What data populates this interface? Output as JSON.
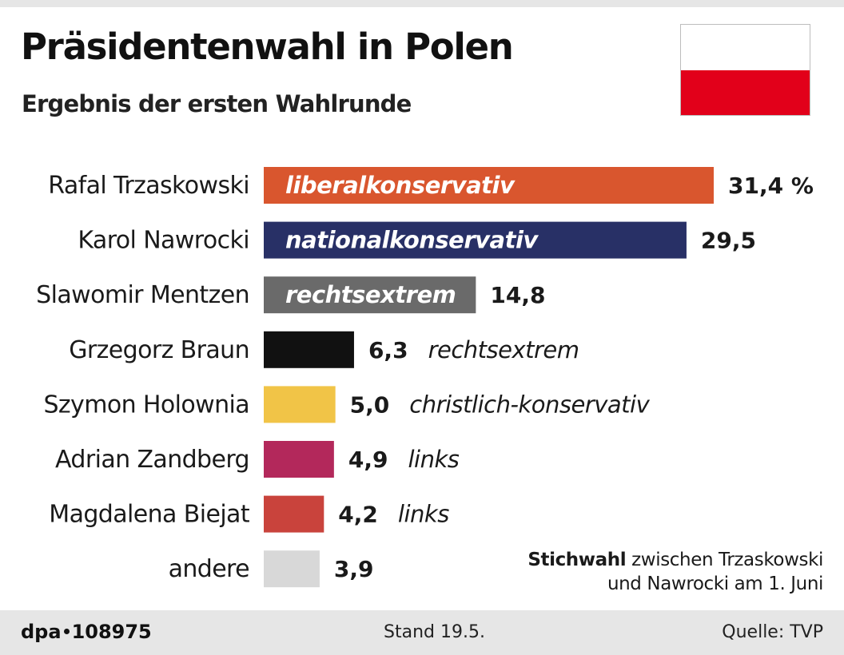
{
  "header": {
    "title": "Präsidentenwahl in Polen",
    "subtitle": "Ergebnis der ersten Wahlrunde"
  },
  "flag": {
    "name": "flag-of-poland-icon",
    "colors": [
      "#ffffff",
      "#e2001a"
    ]
  },
  "chart_data": {
    "type": "bar",
    "orientation": "horizontal",
    "title": "Präsidentenwahl in Polen",
    "subtitle": "Ergebnis der ersten Wahlrunde",
    "unit": "%",
    "xlim": [
      0,
      31.4
    ],
    "categories": [
      "Rafal Trzaskowski",
      "Karol Nawrocki",
      "Slawomir Mentzen",
      "Grzegorz Braun",
      "Szymon Holownia",
      "Adrian Zandberg",
      "Magdalena Biejat",
      "andere"
    ],
    "values": [
      31.4,
      29.5,
      14.8,
      6.3,
      5.0,
      4.9,
      4.2,
      3.9
    ],
    "value_labels": [
      "31,4 %",
      "29,5",
      "14,8",
      "6,3",
      "5,0",
      "4,9",
      "4,2",
      "3,9"
    ],
    "orientations": [
      "liberalkonservativ",
      "nationalkonservativ",
      "rechtsextrem",
      "rechtsextrem",
      "christlich-konservativ",
      "links",
      "links",
      ""
    ],
    "colors": [
      "#d9562e",
      "#283066",
      "#6a6a6a",
      "#111111",
      "#f1c447",
      "#b3285b",
      "#c9433c",
      "#d8d8d8"
    ],
    "label_inside_bar": [
      true,
      true,
      true,
      false,
      false,
      false,
      false,
      false
    ]
  },
  "note": {
    "bold": "Stichwahl",
    "line1_rest": " zwischen Trzaskowski",
    "line2": "und Nawrocki am 1. Juni"
  },
  "footer": {
    "agency": "dpa",
    "id": "108975",
    "stand": "Stand 19.5.",
    "source": "Quelle: TVP"
  }
}
